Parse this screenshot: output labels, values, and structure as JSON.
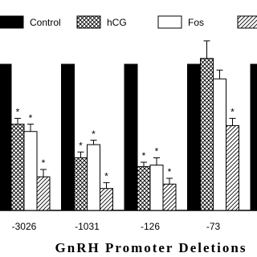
{
  "chart_data": {
    "type": "bar",
    "x_label": "GnRH Promoter Deletions",
    "categories": [
      "-3026",
      "-1031",
      "-126",
      "-73",
      null
    ],
    "ylim": [
      0,
      100
    ],
    "series": [
      {
        "name": "Control",
        "pattern": "solid",
        "values": [
          100,
          100,
          100,
          100,
          100
        ]
      },
      {
        "name": "hCG",
        "pattern": "crosshatch",
        "values": [
          59,
          36,
          30,
          104,
          null
        ],
        "errors": [
          4,
          4,
          3,
          12,
          null
        ],
        "marks": [
          "*",
          "*",
          "*",
          null,
          null
        ]
      },
      {
        "name": "Fos",
        "pattern": "open",
        "values": [
          54,
          45,
          31,
          90,
          null
        ],
        "errors": [
          5,
          3,
          5,
          6,
          null
        ],
        "marks": [
          "*",
          "*",
          "*",
          null,
          null
        ]
      },
      {
        "pattern": "diagonal",
        "values": [
          23,
          15,
          18,
          58,
          null
        ],
        "errors": [
          5,
          4,
          4,
          5,
          null
        ],
        "marks": [
          "*",
          "*",
          "*",
          "*",
          null
        ]
      }
    ]
  }
}
